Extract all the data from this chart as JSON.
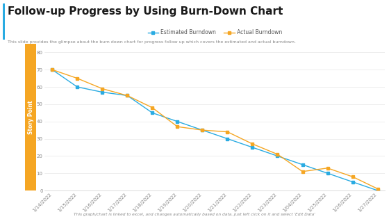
{
  "title": "Follow-up Progress by Using Burn-Down Chart",
  "subtitle": "This slide provides the glimpse about the burn down chart for progress follow up which covers the estimated and actual burndown.",
  "footer": "This graph/chart is linked to excel, and changes automatically based on data. Just left click on it and select 'Edit Data'",
  "ylabel": "Story Point",
  "background_color": "#ffffff",
  "plot_bg_color": "#ffffff",
  "left_bar_color": "#f5a623",
  "dates": [
    "1/14/2022",
    "1/15/2022",
    "1/16/2022",
    "1/17/2022",
    "1/18/2022",
    "1/19/2022",
    "1/20/2022",
    "1/21/2022",
    "1/22/2022",
    "1/23/2022",
    "1/04/2022",
    "1/25/2022",
    "1/26/2022",
    "1/27/2022"
  ],
  "estimated": [
    70,
    60,
    57,
    55,
    45,
    40,
    35,
    30,
    25,
    20,
    15,
    10,
    5,
    0
  ],
  "actual": [
    70,
    65,
    59,
    55,
    48,
    37,
    35,
    34,
    27,
    21,
    11,
    13,
    8,
    1
  ],
  "estimated_color": "#29abe2",
  "actual_color": "#f5a623",
  "ylim": [
    0,
    85
  ],
  "yticks": [
    0,
    10,
    20,
    30,
    40,
    50,
    60,
    70,
    80
  ],
  "legend_estimated": "Estimated Burndown",
  "legend_actual": "Actual Burndown",
  "title_fontsize": 11,
  "subtitle_fontsize": 4.5,
  "footer_fontsize": 4.2,
  "tick_fontsize": 5.0,
  "legend_fontsize": 5.5,
  "marker_size": 3,
  "line_width": 1.0,
  "title_color": "#1a1a1a",
  "subtitle_color": "#888888",
  "footer_color": "#888888",
  "tick_color": "#888888",
  "grid_color": "#e8e8e8",
  "spine_color": "#cccccc"
}
